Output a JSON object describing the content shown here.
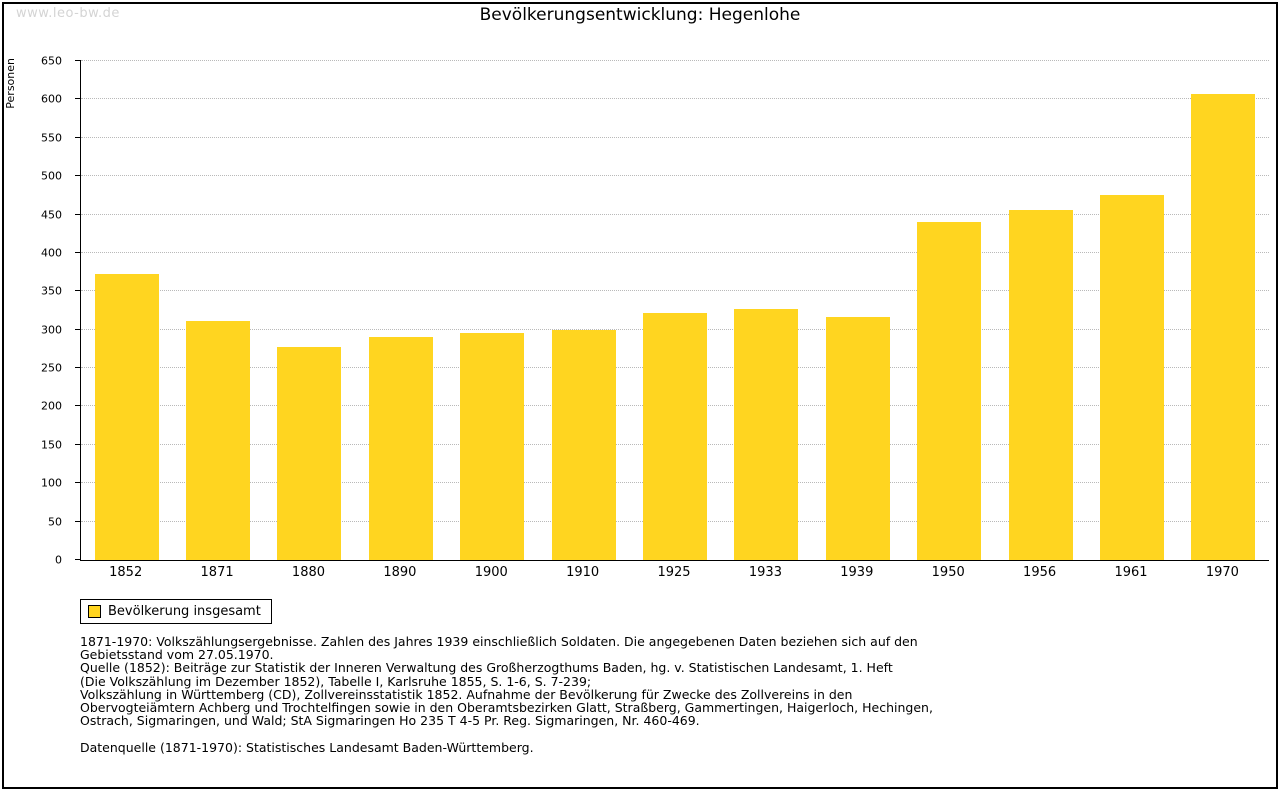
{
  "watermark": "www.leo-bw.de",
  "legend": {
    "label": "Bevölkerung insgesamt"
  },
  "colors": {
    "bar": "#FFD520",
    "grid": "#b9b9b9",
    "axis": "#000000"
  },
  "chart_data": {
    "type": "bar",
    "title": "Bevölkerungsentwicklung: Hegenlohe",
    "ylabel": "Personen",
    "xlabel": "",
    "categories": [
      "1852",
      "1871",
      "1880",
      "1890",
      "1900",
      "1910",
      "1925",
      "1933",
      "1939",
      "1950",
      "1956",
      "1961",
      "1970"
    ],
    "values": [
      372,
      311,
      277,
      290,
      296,
      300,
      322,
      327,
      317,
      440,
      456,
      476,
      607
    ],
    "ylim": [
      0,
      650
    ],
    "ytick_step": 50,
    "grid": true,
    "legend_entries": [
      "Bevölkerung insgesamt"
    ],
    "legend_position": "bottom-left"
  },
  "notes": [
    "1871-1970: Volkszählungsergebnisse. Zahlen des Jahres 1939 einschließlich Soldaten. Die angegebenen Daten beziehen sich auf den",
    "Gebietsstand vom 27.05.1970.",
    "Quelle (1852): Beiträge zur Statistik der Inneren Verwaltung des Großherzogthums Baden, hg. v. Statistischen Landesamt, 1. Heft",
    "(Die Volkszählung im Dezember 1852), Tabelle I, Karlsruhe 1855, S. 1-6, S. 7-239;",
    "Volkszählung in Württemberg (CD), Zollvereinsstatistik 1852. Aufnahme der Bevölkerung für Zwecke des Zollvereins in den",
    "Obervogteiämtern Achberg und Trochtelfingen sowie in den Oberamtsbezirken Glatt, Straßberg, Gammertingen, Haigerloch, Hechingen,",
    "Ostrach, Sigmaringen, und Wald; StA Sigmaringen Ho 235 T 4-5 Pr. Reg. Sigmaringen, Nr. 460-469."
  ],
  "datasource": "Datenquelle (1871-1970): Statistisches Landesamt Baden-Württemberg."
}
